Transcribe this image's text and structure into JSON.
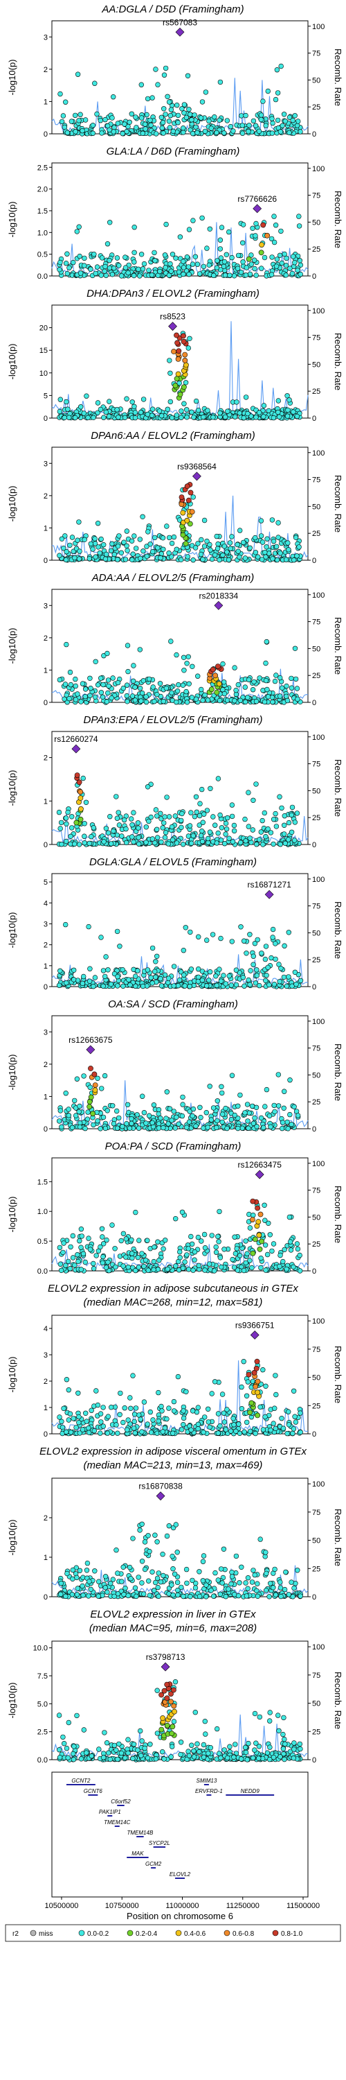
{
  "chart_data": [
    {
      "type": "scatter",
      "title": "AA:DGLA / D5D (Framingham)",
      "subtitle": "",
      "ylabel": "-log10(p)",
      "y2label": "Recomb. Rate",
      "yticks": [
        0,
        1,
        2,
        3
      ],
      "ylim": [
        0,
        3.5
      ],
      "y2ticks": [
        0,
        25,
        50,
        75,
        100
      ],
      "lead": {
        "id": "rs567083",
        "x": 10990000,
        "y": 3.15
      },
      "peak": {
        "x": 10990000,
        "y": 1.0,
        "spread": 60000
      },
      "base": 0.25,
      "topr": 0.6,
      "colored": 0,
      "recomb": [
        [
          11220000,
          52
        ],
        [
          11240000,
          40
        ],
        [
          11330000,
          50
        ],
        [
          11360000,
          35
        ]
      ]
    },
    {
      "type": "scatter",
      "title": "GLA:LA / D6D (Framingham)",
      "subtitle": "",
      "ylabel": "-log10(p)",
      "y2label": "Recomb. Rate",
      "yticks": [
        0.0,
        0.5,
        1.0,
        1.5,
        2.0,
        2.5
      ],
      "ylim": [
        0,
        2.6
      ],
      "y2ticks": [
        0,
        25,
        50,
        75,
        100
      ],
      "lead": {
        "id": "rs7766626",
        "x": 11310000,
        "y": 1.55
      },
      "peak": {
        "x": 11310000,
        "y": 1.4,
        "spread": 80000
      },
      "base": 0.2,
      "topr": 0.55,
      "colored": 5,
      "recomb": [
        [
          11140000,
          50
        ],
        [
          11200000,
          45
        ],
        [
          11260000,
          40
        ]
      ]
    },
    {
      "type": "scatter",
      "title": "DHA:DPAn3 / ELOVL2 (Framingham)",
      "subtitle": "",
      "ylabel": "-log10(p)",
      "y2label": "Recomb. Rate",
      "yticks": [
        0,
        5,
        10,
        15,
        20
      ],
      "ylim": [
        0,
        25
      ],
      "y2ticks": [
        0,
        25,
        50,
        75,
        100
      ],
      "lead": {
        "id": "rs8523",
        "x": 10960000,
        "y": 20.3
      },
      "peak": {
        "x": 10990000,
        "y": 19,
        "spread": 45000
      },
      "base": 0.8,
      "topr": 0.2,
      "colored": 30,
      "recomb": [
        [
          11200000,
          90
        ],
        [
          11230000,
          55
        ],
        [
          11330000,
          35
        ]
      ]
    },
    {
      "type": "scatter",
      "title": "DPAn6:AA / ELOVL2 (Framingham)",
      "subtitle": "",
      "ylabel": "-log10(p)",
      "y2label": "Recomb. Rate",
      "yticks": [
        0,
        1,
        2,
        3
      ],
      "ylim": [
        0,
        3.5
      ],
      "y2ticks": [
        0,
        25,
        50,
        75,
        100
      ],
      "lead": {
        "id": "rs9368564",
        "x": 11060000,
        "y": 2.6
      },
      "peak": {
        "x": 11020000,
        "y": 2.4,
        "spread": 40000
      },
      "base": 0.3,
      "topr": 0.4,
      "colored": 24,
      "recomb": [
        [
          11180000,
          45
        ],
        [
          11210000,
          60
        ],
        [
          11320000,
          40
        ]
      ]
    },
    {
      "type": "scatter",
      "title": "ADA:AA / ELOVL2/5 (Framingham)",
      "subtitle": "",
      "ylabel": "-log10(p)",
      "y2label": "Recomb. Rate",
      "yticks": [
        0,
        1,
        2,
        3
      ],
      "ylim": [
        0,
        3.5
      ],
      "y2ticks": [
        0,
        25,
        50,
        75,
        100
      ],
      "lead": {
        "id": "rs2018334",
        "x": 11150000,
        "y": 3.0
      },
      "peak": {
        "x": 11140000,
        "y": 1.2,
        "spread": 50000
      },
      "base": 0.3,
      "topr": 0.55,
      "colored": 18,
      "recomb": [
        [
          11130000,
          30
        ],
        [
          11240000,
          25
        ]
      ]
    },
    {
      "type": "scatter",
      "title": "DPAn3:EPA / ELOVL2/5 (Framingham)",
      "subtitle": "",
      "ylabel": "-log10(p)",
      "y2label": "Recomb. Rate",
      "yticks": [
        0,
        1,
        2
      ],
      "ylim": [
        0,
        2.6
      ],
      "y2ticks": [
        0,
        25,
        50,
        75,
        100
      ],
      "lead": {
        "id": "rs12660274",
        "x": 10560000,
        "y": 2.2
      },
      "peak": {
        "x": 10570000,
        "y": 1.7,
        "spread": 20000
      },
      "base": 0.3,
      "topr": 0.6,
      "colored": 12,
      "recomb": [
        [
          10520000,
          30
        ],
        [
          10800000,
          20
        ]
      ]
    },
    {
      "type": "scatter",
      "title": "DGLA:GLA / ELOVL5 (Framingham)",
      "subtitle": "",
      "ylabel": "-log10(p)",
      "y2label": "Recomb. Rate",
      "yticks": [
        0,
        1,
        2,
        3,
        4,
        5
      ],
      "ylim": [
        0,
        5.4
      ],
      "y2ticks": [
        0,
        25,
        50,
        75,
        100
      ],
      "lead": {
        "id": "rs16871271",
        "x": 11360000,
        "y": 4.4
      },
      "peak": {
        "x": 11340000,
        "y": 2.8,
        "spread": 60000
      },
      "base": 0.35,
      "topr": 0.55,
      "colored": 0,
      "recomb": [
        [
          11230000,
          30
        ],
        [
          11300000,
          25
        ]
      ]
    },
    {
      "type": "scatter",
      "title": "OA:SA / SCD (Framingham)",
      "subtitle": "",
      "ylabel": "-log10(p)",
      "y2label": "Recomb. Rate",
      "yticks": [
        0,
        1,
        2,
        3
      ],
      "ylim": [
        0,
        3.5
      ],
      "y2ticks": [
        0,
        25,
        50,
        75,
        100
      ],
      "lead": {
        "id": "rs12663675",
        "x": 10620000,
        "y": 2.45
      },
      "peak": {
        "x": 10630000,
        "y": 2.0,
        "spread": 25000
      },
      "base": 0.3,
      "topr": 0.5,
      "colored": 10,
      "recomb": [
        [
          10760000,
          45
        ],
        [
          11200000,
          25
        ]
      ]
    },
    {
      "type": "scatter",
      "title": "POA:PA / SCD (Framingham)",
      "subtitle": "",
      "ylabel": "-log10(p)",
      "y2label": "Recomb. Rate",
      "yticks": [
        0.0,
        0.5,
        1.0,
        1.5
      ],
      "ylim": [
        0,
        1.9
      ],
      "y2ticks": [
        0,
        25,
        50,
        75,
        100
      ],
      "lead": {
        "id": "rs12663475",
        "x": 11320000,
        "y": 1.62
      },
      "peak": {
        "x": 11310000,
        "y": 1.3,
        "spread": 35000
      },
      "base": 0.25,
      "topr": 0.55,
      "colored": 12,
      "recomb": [
        [
          10520000,
          20
        ],
        [
          11250000,
          30
        ]
      ]
    },
    {
      "type": "scatter",
      "title": "ELOVL2 expression in adipose subcutaneous in GTEx",
      "subtitle": "(median MAC=268, min=12, max=581)",
      "ylabel": "-log10(p)",
      "y2label": "Recomb. Rate",
      "yticks": [
        0,
        1,
        2,
        3,
        4
      ],
      "ylim": [
        0,
        4.5
      ],
      "y2ticks": [
        0,
        25,
        50,
        75,
        100
      ],
      "lead": {
        "id": "rs9366751",
        "x": 11300000,
        "y": 3.75
      },
      "peak": {
        "x": 11290000,
        "y": 2.8,
        "spread": 45000
      },
      "base": 0.4,
      "topr": 0.5,
      "colored": 16,
      "recomb": [
        [
          11180000,
          30
        ],
        [
          11230000,
          65
        ],
        [
          11340000,
          30
        ]
      ]
    },
    {
      "type": "scatter",
      "title": "ELOVL2 expression in adipose visceral omentum in GTEx",
      "subtitle": "(median MAC=213, min=13, max=469)",
      "ylabel": "-log10(p)",
      "y2label": "Recomb. Rate",
      "yticks": [
        0,
        1,
        2
      ],
      "ylim": [
        0,
        3.0
      ],
      "y2ticks": [
        0,
        25,
        50,
        75,
        100
      ],
      "lead": {
        "id": "rs16870838",
        "x": 10910000,
        "y": 2.55
      },
      "peak": {
        "x": 10900000,
        "y": 1.9,
        "spread": 80000
      },
      "base": 0.3,
      "topr": 0.5,
      "colored": 0,
      "recomb": [
        [
          11200000,
          25
        ]
      ]
    },
    {
      "type": "scatter",
      "title": "ELOVL2 expression in liver in GTEx",
      "subtitle": "(median MAC=95, min=6, max=208)",
      "ylabel": "-log10(p)",
      "y2label": "Recomb. Rate",
      "yticks": [
        0.0,
        2.5,
        5.0,
        7.5,
        10.0
      ],
      "ylim": [
        0,
        10.6
      ],
      "y2ticks": [
        0,
        25,
        50,
        75,
        100
      ],
      "lead": {
        "id": "rs3798713",
        "x": 10930000,
        "y": 8.3
      },
      "peak": {
        "x": 10940000,
        "y": 7.0,
        "spread": 45000
      },
      "base": 0.6,
      "topr": 0.4,
      "colored": 30,
      "recomb": [
        [
          11240000,
          40
        ],
        [
          11260000,
          20
        ],
        [
          11340000,
          30
        ]
      ]
    }
  ],
  "genes": {
    "xlabel": "Position on chromosome 6",
    "xticks": [
      10500000,
      10750000,
      11000000,
      11250000,
      11500000
    ],
    "items": [
      {
        "name": "GCNT2",
        "start": 10520000,
        "end": 10640000,
        "row": 0
      },
      {
        "name": "GCNT6",
        "start": 10610000,
        "end": 10650000,
        "row": 1
      },
      {
        "name": "C6orf52",
        "start": 10730000,
        "end": 10760000,
        "row": 2
      },
      {
        "name": "PAK1IP1",
        "start": 10690000,
        "end": 10710000,
        "row": 3
      },
      {
        "name": "TMEM14C",
        "start": 10720000,
        "end": 10740000,
        "row": 4
      },
      {
        "name": "TMEM14B",
        "start": 10810000,
        "end": 10840000,
        "row": 5
      },
      {
        "name": "SYCP2L",
        "start": 10880000,
        "end": 10930000,
        "row": 6
      },
      {
        "name": "MAK",
        "start": 10770000,
        "end": 10860000,
        "row": 7
      },
      {
        "name": "GCM2",
        "start": 10870000,
        "end": 10890000,
        "row": 8
      },
      {
        "name": "ELOVL2",
        "start": 10970000,
        "end": 11010000,
        "row": 9
      },
      {
        "name": "SMIM13",
        "start": 11090000,
        "end": 11110000,
        "row": 0
      },
      {
        "name": "ERVFRD-1",
        "start": 11100000,
        "end": 11120000,
        "row": 1
      },
      {
        "name": "NEDD9",
        "start": 11180000,
        "end": 11380000,
        "row": 1
      }
    ]
  },
  "legend": {
    "title": "r2",
    "items": [
      {
        "label": "miss",
        "color": "#b5b5b5"
      },
      {
        "label": "0.0-0.2",
        "color": "#3fe8e0"
      },
      {
        "label": "0.2-0.4",
        "color": "#73d32b"
      },
      {
        "label": "0.4-0.6",
        "color": "#f2c418"
      },
      {
        "label": "0.6-0.8",
        "color": "#f08a2a"
      },
      {
        "label": "0.8-1.0",
        "color": "#c83a2a"
      }
    ],
    "lead_color": "#7b2fbf"
  },
  "xrange": [
    10460000,
    11520000
  ]
}
